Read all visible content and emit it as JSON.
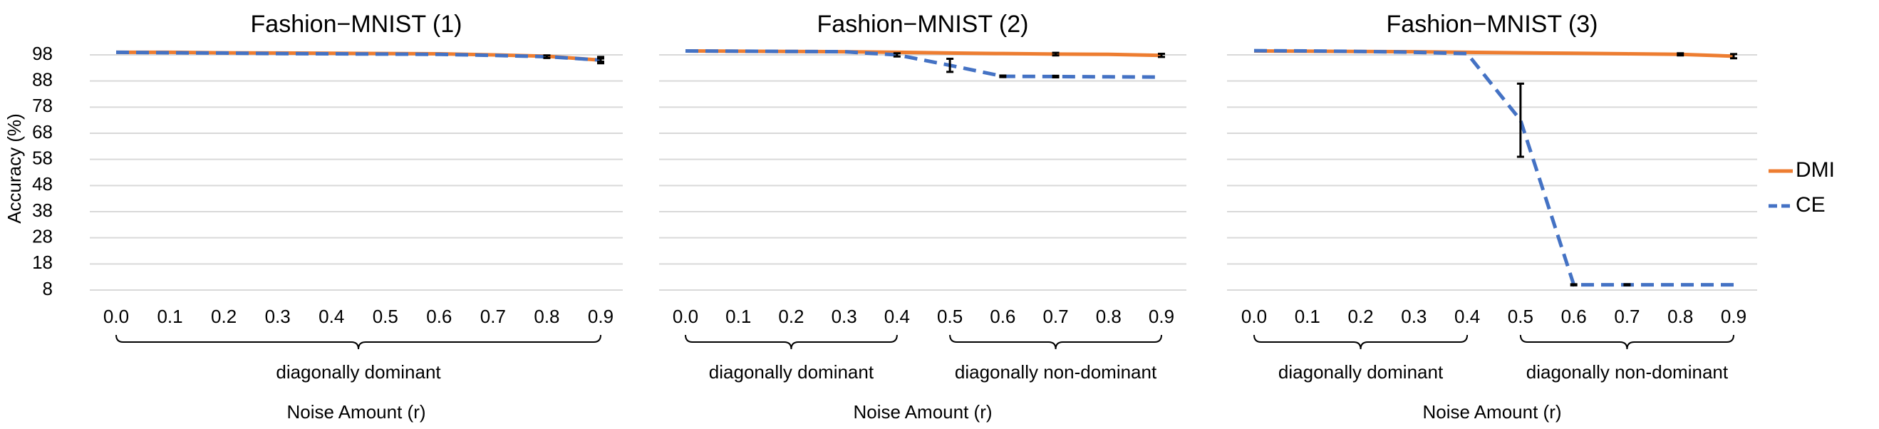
{
  "chart_data": [
    {
      "type": "line",
      "title": "Fashion−MNIST (1)",
      "y_label": "Accuracy (%)",
      "x_label": "Noise Amount (r)",
      "x": [
        0,
        0.1,
        0.2,
        0.3,
        0.4,
        0.5,
        0.6,
        0.7,
        0.8,
        0.9
      ],
      "xlim": [
        0,
        0.9
      ],
      "xticks": [
        {
          "value": 0,
          "label": "0.0"
        },
        0.1,
        0.2,
        0.3,
        0.4,
        0.5,
        0.6,
        0.7,
        0.8,
        0.9
      ],
      "ylim": [
        8,
        101
      ],
      "yticks": [
        8,
        18,
        28,
        38,
        48,
        58,
        68,
        78,
        88,
        98
      ],
      "grid": true,
      "legend": "right",
      "groups": [
        {
          "label": "diagonally dominant",
          "range": [
            0,
            0.9
          ]
        }
      ],
      "series": [
        {
          "name": "DMI",
          "color": "#ed7d31",
          "linestyle": "solid",
          "values": [
            99,
            99,
            98.8,
            98.7,
            98.6,
            98.5,
            98.4,
            98,
            97.5,
            96
          ],
          "errors": [
            null,
            null,
            null,
            null,
            null,
            null,
            null,
            null,
            null,
            0.6
          ]
        },
        {
          "name": "CE",
          "color": "#4472c4",
          "linestyle": "dashed",
          "values": [
            99,
            98.8,
            98.7,
            98.5,
            98.4,
            98.3,
            98.2,
            97.8,
            97.3,
            96
          ],
          "errors": [
            null,
            null,
            null,
            null,
            null,
            null,
            null,
            null,
            0.5,
            1.2
          ]
        }
      ]
    },
    {
      "type": "line",
      "title": "Fashion−MNIST (2)",
      "x_label": "Noise Amount (r)",
      "x": [
        0,
        0.1,
        0.2,
        0.3,
        0.4,
        0.5,
        0.6,
        0.7,
        0.8,
        0.9
      ],
      "xlim": [
        0,
        0.9
      ],
      "xticks": [
        {
          "value": 0,
          "label": "0.0"
        },
        0.1,
        0.2,
        0.3,
        0.4,
        0.5,
        0.6,
        0.7,
        0.8,
        0.9
      ],
      "ylim": [
        8,
        101
      ],
      "yticks": [
        8,
        18,
        28,
        38,
        48,
        58,
        68,
        78,
        88,
        98
      ],
      "grid": true,
      "groups": [
        {
          "label": "diagonally dominant",
          "range": [
            0,
            0.4
          ]
        },
        {
          "label": "diagonally  non-dominant",
          "range": [
            0.5,
            0.9
          ]
        }
      ],
      "series": [
        {
          "name": "DMI",
          "color": "#ed7d31",
          "linestyle": "solid",
          "values": [
            99.5,
            99.4,
            99.3,
            99.2,
            99,
            98.7,
            98.5,
            98.3,
            98.2,
            97.8
          ],
          "errors": [
            null,
            null,
            null,
            null,
            null,
            null,
            null,
            0.5,
            null,
            0.6
          ]
        },
        {
          "name": "CE",
          "color": "#4472c4",
          "linestyle": "dashed",
          "values": [
            99.5,
            99.4,
            99.3,
            99.2,
            98,
            94,
            89.8,
            89.7,
            89.6,
            89.5
          ],
          "errors": [
            null,
            null,
            null,
            null,
            0.6,
            2.5,
            0.3,
            0.3,
            null,
            null
          ]
        }
      ]
    },
    {
      "type": "line",
      "title": "Fashion−MNIST (3)",
      "x_label": "Noise Amount (r)",
      "x": [
        0,
        0.1,
        0.2,
        0.3,
        0.4,
        0.5,
        0.6,
        0.7,
        0.8,
        0.9
      ],
      "xlim": [
        0,
        0.9
      ],
      "xticks": [
        {
          "value": 0,
          "label": "0.0"
        },
        0.1,
        0.2,
        0.3,
        0.4,
        0.5,
        0.6,
        0.7,
        0.8,
        0.9
      ],
      "ylim": [
        8,
        101
      ],
      "yticks": [
        8,
        18,
        28,
        38,
        48,
        58,
        68,
        78,
        88,
        98
      ],
      "grid": true,
      "groups": [
        {
          "label": "diagonally dominant",
          "range": [
            0,
            0.4
          ]
        },
        {
          "label": "diagonally  non-dominant",
          "range": [
            0.5,
            0.9
          ]
        }
      ],
      "series": [
        {
          "name": "DMI",
          "color": "#ed7d31",
          "linestyle": "solid",
          "values": [
            99.5,
            99.4,
            99.3,
            99.2,
            99,
            98.8,
            98.6,
            98.4,
            98.2,
            97.5
          ],
          "errors": [
            null,
            null,
            null,
            null,
            null,
            null,
            null,
            null,
            0.4,
            0.8
          ]
        },
        {
          "name": "CE",
          "color": "#4472c4",
          "linestyle": "dashed",
          "values": [
            99.6,
            99.5,
            99.3,
            99,
            98.5,
            73,
            10,
            10,
            10,
            10
          ],
          "errors": [
            null,
            null,
            null,
            null,
            null,
            14,
            0.2,
            0.2,
            null,
            null
          ]
        }
      ]
    }
  ]
}
